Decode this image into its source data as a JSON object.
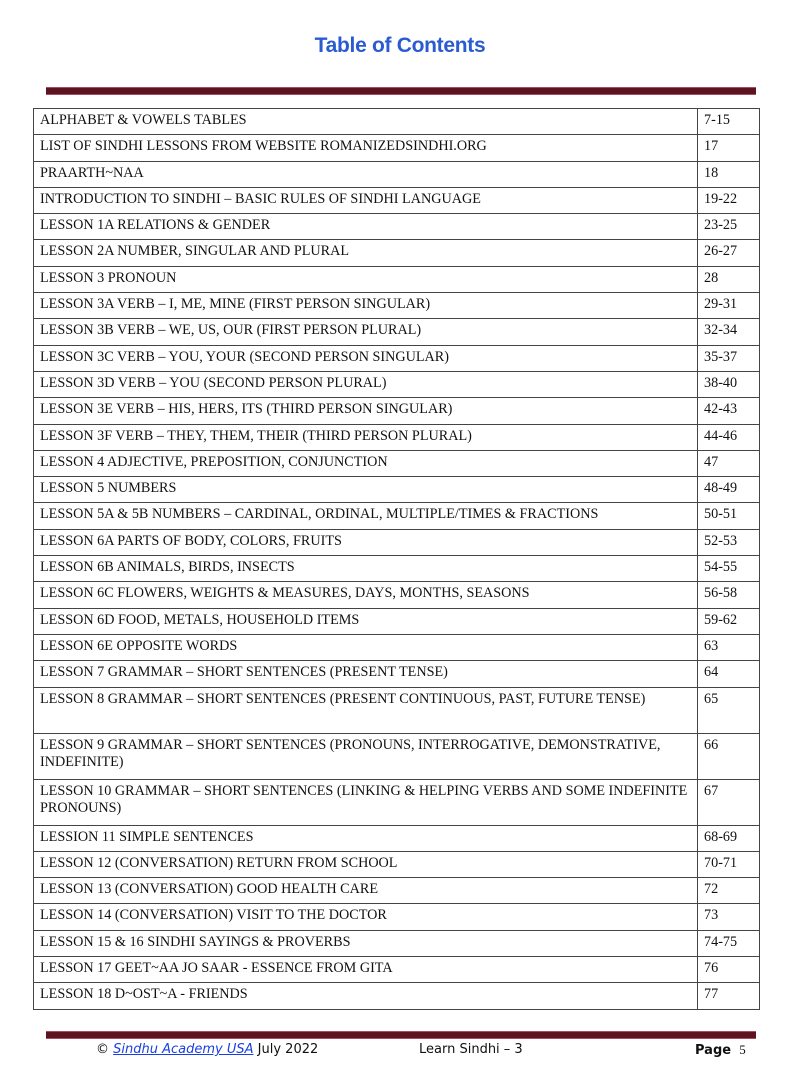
{
  "title": "Table of Contents",
  "entries": [
    {
      "title": "ALPHABET & VOWELS TABLES",
      "pages": "7-15"
    },
    {
      "title": "LIST OF SINDHI LESSONS FROM WEBSITE ROMANIZEDSINDHI.ORG",
      "pages": "17"
    },
    {
      "title": "PRAARTH~NAA",
      "pages": "18"
    },
    {
      "title": "INTRODUCTION TO SINDHI – BASIC RULES OF SINDHI LANGUAGE",
      "pages": "19-22"
    },
    {
      "title": "LESSON 1A RELATIONS & GENDER",
      "pages": "23-25"
    },
    {
      "title": "LESSON 2A NUMBER, SINGULAR AND PLURAL",
      "pages": "26-27"
    },
    {
      "title": "LESSON 3 PRONOUN",
      "pages": "28"
    },
    {
      "title": "LESSON 3A VERB – I, ME, MINE (FIRST PERSON SINGULAR)",
      "pages": "29-31"
    },
    {
      "title": "LESSON 3B VERB – WE, US, OUR (FIRST PERSON PLURAL)",
      "pages": "32-34"
    },
    {
      "title": "LESSON 3C VERB – YOU, YOUR (SECOND PERSON SINGULAR)",
      "pages": "35-37"
    },
    {
      "title": "LESSON 3D VERB – YOU (SECOND PERSON PLURAL)",
      "pages": "38-40"
    },
    {
      "title": "LESSON 3E VERB – HIS, HERS, ITS (THIRD PERSON SINGULAR)",
      "pages": "42-43"
    },
    {
      "title": "LESSON 3F VERB – THEY, THEM, THEIR (THIRD PERSON PLURAL)",
      "pages": "44-46"
    },
    {
      "title": "LESSON 4 ADJECTIVE, PREPOSITION, CONJUNCTION",
      "pages": "47"
    },
    {
      "title": "LESSON 5 NUMBERS",
      "pages": "48-49"
    },
    {
      "title": "LESSON 5A & 5B NUMBERS – CARDINAL, ORDINAL, MULTIPLE/TIMES & FRACTIONS",
      "pages": "50-51"
    },
    {
      "title": "LESSON 6A PARTS OF BODY, COLORS, FRUITS",
      "pages": "52-53"
    },
    {
      "title": "LESSON 6B ANIMALS, BIRDS, INSECTS",
      "pages": "54-55"
    },
    {
      "title": "LESSON 6C FLOWERS, WEIGHTS & MEASURES, DAYS, MONTHS, SEASONS",
      "pages": "56-58"
    },
    {
      "title": "LESSON 6D FOOD, METALS, HOUSEHOLD ITEMS",
      "pages": "59-62"
    },
    {
      "title": "LESSON 6E OPPOSITE WORDS",
      "pages": "63"
    },
    {
      "title": "LESSON 7 GRAMMAR – SHORT SENTENCES (PRESENT TENSE)",
      "pages": "64"
    },
    {
      "title": "LESSON 8 GRAMMAR – SHORT SENTENCES (PRESENT CONTINUOUS, PAST, FUTURE TENSE)",
      "pages": "65",
      "tall": true
    },
    {
      "title": "LESSON 9 GRAMMAR – SHORT SENTENCES (PRONOUNS, INTERROGATIVE, DEMONSTRATIVE, INDEFINITE)",
      "pages": "66",
      "tall": true
    },
    {
      "title": "LESSON 10 GRAMMAR – SHORT SENTENCES (LINKING & HELPING VERBS AND SOME INDEFINITE PRONOUNS)",
      "pages": "67",
      "tall": true
    },
    {
      "title": "LESSION 11 SIMPLE SENTENCES",
      "pages": "68-69"
    },
    {
      "title": "LESSON 12 (CONVERSATION) RETURN FROM SCHOOL",
      "pages": "70-71"
    },
    {
      "title": "LESSON 13 (CONVERSATION) GOOD HEALTH CARE",
      "pages": "72"
    },
    {
      "title": "LESSON 14 (CONVERSATION) VISIT TO THE DOCTOR",
      "pages": "73"
    },
    {
      "title": "LESSON 15 & 16 SINDHI SAYINGS & PROVERBS",
      "pages": "74-75"
    },
    {
      "title": "LESSON 17 GEET~AA JO SAAR - ESSENCE FROM GITA",
      "pages": "76"
    },
    {
      "title": "LESSON 18 D~OST~A - FRIENDS",
      "pages": "77"
    }
  ],
  "footer": {
    "copyright": "©",
    "link": "Sindhu Academy USA",
    "date": "July 2022",
    "book": "Learn Sindhi – 3",
    "page_label": "Page",
    "page_number": "5"
  },
  "colors": {
    "title": "#2a5bd0",
    "rule": "#5c1420",
    "link": "#1a3fe0"
  }
}
